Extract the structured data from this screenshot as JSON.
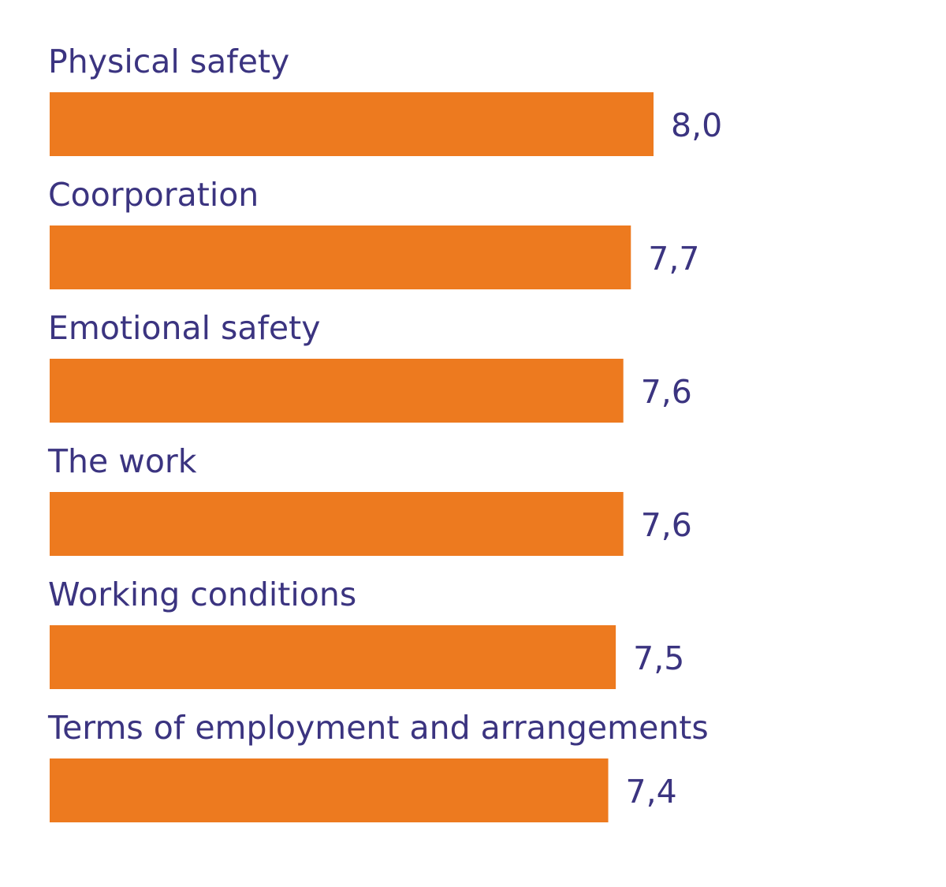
{
  "chart_data": {
    "type": "bar",
    "orientation": "horizontal",
    "categories": [
      "Physical safety",
      "Coorporation",
      "Emotional safety",
      "The work",
      "Working conditions",
      "Terms of employment and arrangements"
    ],
    "values": [
      8.0,
      7.7,
      7.6,
      7.6,
      7.5,
      7.4
    ],
    "value_labels": [
      "8,0",
      "7,7",
      "7,6",
      "7,6",
      "7,5",
      "7,4"
    ],
    "title": "",
    "xlabel": "",
    "ylabel": "",
    "xlim": [
      0,
      8
    ],
    "grid": false,
    "legend": "none"
  },
  "colors": {
    "bar": "#ED7A1F",
    "text": "#3B3480",
    "background": "#FFFFFF"
  }
}
